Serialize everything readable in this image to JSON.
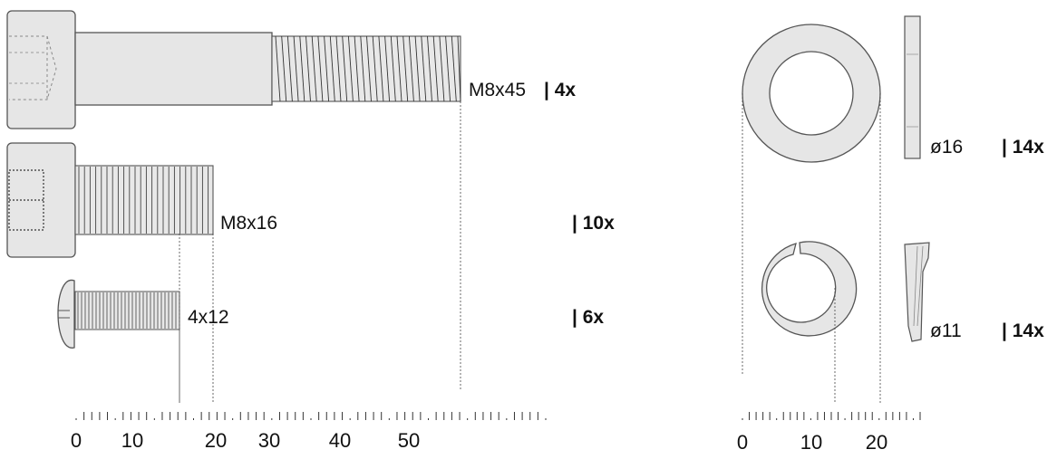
{
  "labels": {
    "m8x45_size": "M8x45",
    "m8x45_qty": "| 4x",
    "m8x16_size": "M8x16",
    "m8x16_qty": "| 10x",
    "screw_size": "4x12",
    "screw_qty": "| 6x",
    "washer_size": "ø16",
    "washer_qty": "| 14x",
    "spring_size": "ø11",
    "spring_qty": "| 14x"
  },
  "scale_left": [
    "0",
    "10",
    "20",
    "30",
    "40",
    "50"
  ],
  "scale_right": [
    "0",
    "10",
    "20"
  ],
  "colors": {
    "part_fill": "#e6e6e6",
    "part_stroke": "#555555",
    "thread_line": "#333333",
    "guide_line": "#444444"
  }
}
